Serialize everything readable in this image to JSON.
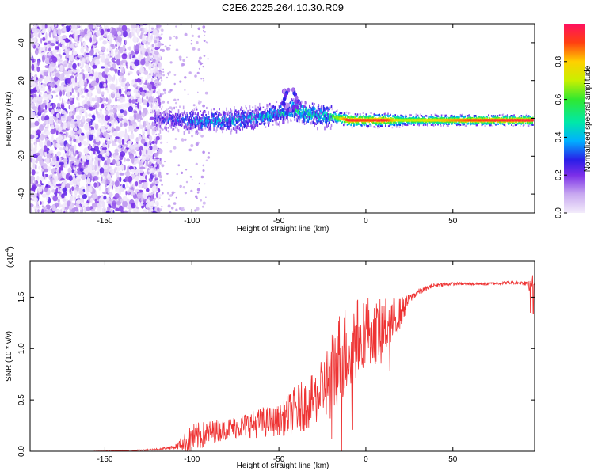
{
  "title": "C2E6.2025.264.10.30.R09",
  "chart_data": [
    {
      "type": "heatmap",
      "title": "C2E6.2025.264.10.30.R09",
      "xlabel": "Height of straight line (km)",
      "ylabel": "Frequency (Hz)",
      "xlim": [
        -193,
        97
      ],
      "ylim": [
        -50,
        50
      ],
      "xticks": [
        -150,
        -100,
        -50,
        0,
        50
      ],
      "yticks": [
        -40,
        -20,
        0,
        20,
        40
      ],
      "colorbar": {
        "label": "Normalized spectral amplitude",
        "range": [
          0,
          1
        ],
        "ticks": [
          0.0,
          0.2,
          0.4,
          0.6,
          0.8
        ],
        "tick_labels": [
          "0.0",
          "0.2",
          "0.4",
          "0.6",
          "0.8"
        ]
      },
      "ridge": {
        "x": [
          -120,
          -100,
          -80,
          -60,
          -50,
          -42,
          -35,
          -28,
          -20,
          -10,
          0,
          10,
          20,
          40,
          60,
          80,
          95
        ],
        "frequency": [
          0,
          -1,
          -1,
          1,
          3,
          5,
          3,
          2,
          1,
          -1,
          -1,
          -1,
          -1,
          -1,
          -1,
          -1,
          -1
        ],
        "peak_amplitude": [
          0.3,
          0.45,
          0.5,
          0.5,
          0.55,
          0.6,
          0.6,
          0.55,
          0.6,
          0.95,
          0.9,
          0.95,
          0.7,
          0.8,
          0.9,
          0.95,
          0.95
        ]
      }
    },
    {
      "type": "line",
      "xlabel": "Height of straight line (km)",
      "ylabel": "SNR (10 * v/v)",
      "multiplier": "(x10",
      "multiplier_exp": "4",
      "multiplier_close": ")",
      "xlim": [
        -193,
        97
      ],
      "ylim": [
        0,
        1.85
      ],
      "xticks": [
        -150,
        -100,
        -50,
        0,
        50
      ],
      "yticks": [
        0.0,
        0.5,
        1.0,
        1.5
      ],
      "ytick_labels": [
        "0.0",
        "0.5",
        "1.0",
        "1.5"
      ],
      "line_color": "#ee3333",
      "series": [
        {
          "name": "SNR",
          "x": [
            -193,
            -160,
            -130,
            -120,
            -110,
            -105,
            -100,
            -90,
            -80,
            -70,
            -60,
            -50,
            -45,
            -40,
            -35,
            -30,
            -25,
            -20,
            -15,
            -10,
            -5,
            0,
            5,
            10,
            15,
            20,
            25,
            30,
            40,
            50,
            60,
            70,
            80,
            90,
            95,
            97
          ],
          "y": [
            0.0,
            0.0,
            0.01,
            0.02,
            0.04,
            0.08,
            0.12,
            0.18,
            0.22,
            0.25,
            0.28,
            0.3,
            0.35,
            0.4,
            0.45,
            0.5,
            0.6,
            0.75,
            0.9,
            1.0,
            1.1,
            1.2,
            1.15,
            1.2,
            1.25,
            1.35,
            1.48,
            1.55,
            1.62,
            1.63,
            1.63,
            1.63,
            1.64,
            1.64,
            1.65,
            1.64
          ],
          "noise": [
            0.0,
            0.0,
            0.005,
            0.01,
            0.02,
            0.08,
            0.15,
            0.12,
            0.1,
            0.12,
            0.15,
            0.15,
            0.2,
            0.25,
            0.25,
            0.25,
            0.3,
            0.4,
            0.5,
            0.45,
            0.4,
            0.35,
            0.3,
            0.3,
            0.25,
            0.15,
            0.05,
            0.03,
            0.02,
            0.015,
            0.015,
            0.015,
            0.015,
            0.02,
            0.1,
            0.05
          ]
        }
      ]
    }
  ]
}
